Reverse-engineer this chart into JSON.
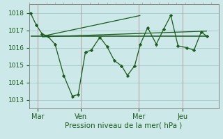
{
  "bg_color": "#cce8e8",
  "grid_color": "#aacccc",
  "line_color": "#1a5c1a",
  "marker_color": "#1a5c1a",
  "title": "Pression niveau de la mer( hPa )",
  "ylim": [
    1012.5,
    1018.5
  ],
  "yticks": [
    1013,
    1014,
    1015,
    1016,
    1017,
    1018
  ],
  "xtick_labels": [
    "Mar",
    "Ven",
    "Mer",
    "Jeu"
  ],
  "xtick_positions": [
    0.5,
    3.5,
    7.5,
    10.5
  ],
  "xlim": [
    -0.1,
    13.0
  ],
  "data_x": [
    0.0,
    0.4,
    0.8,
    1.2,
    1.7,
    2.3,
    2.9,
    3.3,
    3.8,
    4.2,
    4.8,
    5.3,
    5.8,
    6.3,
    6.7,
    7.2,
    7.6,
    8.1,
    8.7,
    9.2,
    9.7,
    10.2,
    10.8,
    11.3,
    11.8,
    12.2
  ],
  "data_y": [
    1018.0,
    1017.3,
    1016.8,
    1016.65,
    1016.2,
    1014.4,
    1013.2,
    1013.3,
    1015.75,
    1015.85,
    1016.6,
    1016.05,
    1015.25,
    1014.95,
    1014.4,
    1014.95,
    1016.2,
    1017.15,
    1016.2,
    1017.05,
    1017.85,
    1016.1,
    1016.0,
    1015.85,
    1016.9,
    1016.65
  ],
  "trend1_x": [
    0.0,
    12.2
  ],
  "trend1_y": [
    1016.68,
    1016.68
  ],
  "trend2_x": [
    0.8,
    12.2
  ],
  "trend2_y": [
    1016.68,
    1016.68
  ],
  "trend3_x": [
    0.8,
    7.6
  ],
  "trend3_y": [
    1016.65,
    1017.85
  ],
  "trend4_x": [
    0.8,
    12.2
  ],
  "trend4_y": [
    1016.62,
    1016.95
  ],
  "vline_positions": [
    0.5,
    3.5,
    7.5,
    10.5
  ],
  "vline_color": "#bb9999"
}
